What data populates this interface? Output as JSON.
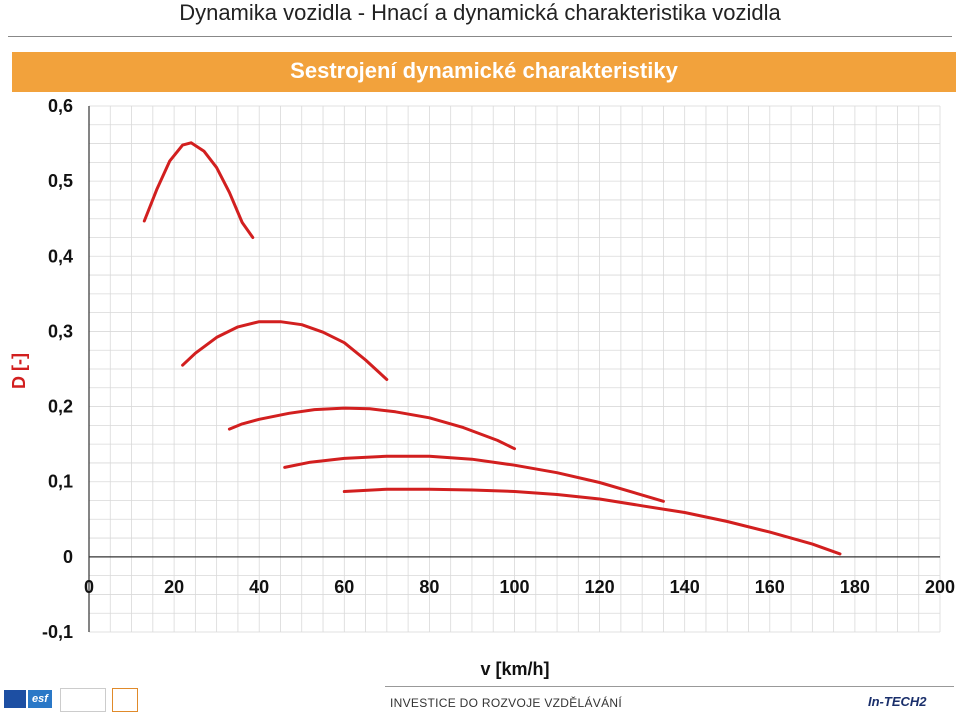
{
  "page_title": "Dynamika vozidla - Hnací a dynamická charakteristika vozidla",
  "banner_title": "Sestrojení dynamické charakteristiky",
  "footer": {
    "text": "INVESTICE DO ROZVOJE VZDĚLÁVÁNÍ",
    "logo_right": "In-TECH2",
    "logo_esf": "esf"
  },
  "colors": {
    "banner": "#f2a23c",
    "curve": "#d21f1f",
    "grid": "#d9d9d9"
  },
  "chart_data": {
    "type": "line",
    "title": "",
    "xlabel": "v [km/h]",
    "ylabel": "D [-]",
    "xlim": [
      0,
      200
    ],
    "ylim": [
      -0.1,
      0.6
    ],
    "x_ticks": [
      "0",
      "20",
      "40",
      "60",
      "80",
      "100",
      "120",
      "140",
      "160",
      "180",
      "200"
    ],
    "y_ticks": [
      "-0,1",
      "0",
      "0,1",
      "0,2",
      "0,3",
      "0,4",
      "0,5",
      "0,6"
    ],
    "grid": true,
    "series": [
      {
        "x": [
          13,
          16,
          19,
          22,
          24,
          27,
          30,
          33,
          36,
          38.5
        ],
        "y": [
          0.447,
          0.49,
          0.527,
          0.548,
          0.551,
          0.54,
          0.518,
          0.485,
          0.445,
          0.425
        ]
      },
      {
        "x": [
          22,
          25,
          30,
          35,
          40,
          45,
          50,
          55,
          60,
          65,
          70
        ],
        "y": [
          0.255,
          0.271,
          0.292,
          0.306,
          0.313,
          0.313,
          0.309,
          0.299,
          0.285,
          0.262,
          0.236
        ]
      },
      {
        "x": [
          33,
          36,
          40,
          47,
          53,
          60,
          66,
          72,
          80,
          88,
          96,
          100
        ],
        "y": [
          0.17,
          0.177,
          0.183,
          0.191,
          0.196,
          0.198,
          0.197,
          0.193,
          0.185,
          0.172,
          0.155,
          0.144
        ]
      },
      {
        "x": [
          46,
          52,
          60,
          70,
          80,
          90,
          100,
          110,
          120,
          135
        ],
        "y": [
          0.119,
          0.126,
          0.131,
          0.134,
          0.134,
          0.13,
          0.122,
          0.112,
          0.099,
          0.074
        ]
      },
      {
        "x": [
          60,
          70,
          80,
          90,
          100,
          110,
          120,
          130,
          140,
          150,
          160,
          170,
          176.5
        ],
        "y": [
          0.087,
          0.09,
          0.09,
          0.089,
          0.087,
          0.083,
          0.077,
          0.068,
          0.059,
          0.047,
          0.033,
          0.017,
          0.004
        ]
      }
    ]
  }
}
